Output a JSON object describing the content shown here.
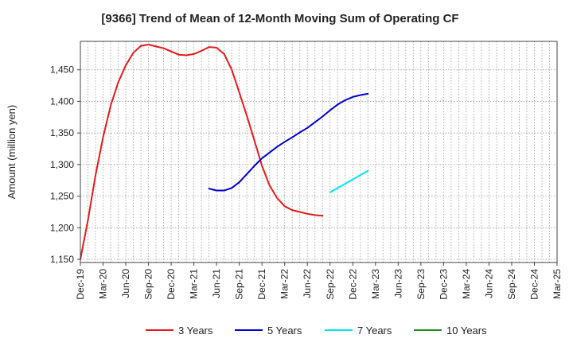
{
  "chart_data": {
    "type": "line",
    "title": "[9366]  Trend of Mean of 12-Month Moving Sum of Operating CF",
    "xlabel": "",
    "ylabel": "Amount (million yen)",
    "ylim": [
      1145,
      1495
    ],
    "yticks": [
      1150,
      1200,
      1250,
      1300,
      1350,
      1400,
      1450
    ],
    "ytick_labels": [
      "1,150",
      "1,200",
      "1,250",
      "1,300",
      "1,350",
      "1,400",
      "1,450"
    ],
    "grid": true,
    "x_categories": [
      "Dec-19",
      "Mar-20",
      "Jun-20",
      "Sep-20",
      "Dec-20",
      "Mar-21",
      "Jun-21",
      "Sep-21",
      "Dec-21",
      "Mar-22",
      "Jun-22",
      "Sep-22",
      "Dec-22",
      "Mar-23",
      "Jun-23",
      "Sep-23",
      "Dec-23",
      "Mar-24",
      "Jun-24",
      "Sep-24",
      "Dec-24",
      "Mar-25"
    ],
    "legend_position": "bottom",
    "series": [
      {
        "name": "3 Years",
        "color": "#e41a1c",
        "points": [
          [
            0,
            1150
          ],
          [
            1,
            1212
          ],
          [
            2,
            1283
          ],
          [
            3,
            1343
          ],
          [
            4,
            1393
          ],
          [
            5,
            1430
          ],
          [
            6,
            1457
          ],
          [
            7,
            1477
          ],
          [
            8,
            1488
          ],
          [
            9,
            1490
          ],
          [
            10,
            1487
          ],
          [
            11,
            1484
          ],
          [
            12,
            1479
          ],
          [
            13,
            1474
          ],
          [
            14,
            1473
          ],
          [
            15,
            1475
          ],
          [
            16,
            1480
          ],
          [
            17,
            1486
          ],
          [
            18,
            1485
          ],
          [
            19,
            1475
          ],
          [
            20,
            1450
          ],
          [
            21,
            1414
          ],
          [
            22,
            1377
          ],
          [
            23,
            1338
          ],
          [
            24,
            1298
          ],
          [
            25,
            1267
          ],
          [
            26,
            1247
          ],
          [
            27,
            1234
          ],
          [
            28,
            1228
          ],
          [
            29,
            1225
          ],
          [
            30,
            1222
          ],
          [
            31,
            1220
          ],
          [
            32,
            1219
          ]
        ]
      },
      {
        "name": "5 Years",
        "color": "#0000cc",
        "points": [
          [
            17,
            1262
          ],
          [
            18,
            1259
          ],
          [
            19,
            1259
          ],
          [
            20,
            1263
          ],
          [
            21,
            1272
          ],
          [
            22,
            1285
          ],
          [
            23,
            1298
          ],
          [
            24,
            1310
          ],
          [
            25,
            1319
          ],
          [
            26,
            1328
          ],
          [
            27,
            1336
          ],
          [
            28,
            1343
          ],
          [
            29,
            1351
          ],
          [
            30,
            1358
          ],
          [
            31,
            1367
          ],
          [
            32,
            1376
          ],
          [
            33,
            1386
          ],
          [
            34,
            1395
          ],
          [
            35,
            1402
          ],
          [
            36,
            1407
          ],
          [
            37,
            1410
          ],
          [
            38,
            1412
          ]
        ]
      },
      {
        "name": "7 Years",
        "color": "#00e5ee",
        "points": [
          [
            33,
            1256
          ],
          [
            38,
            1290
          ]
        ]
      },
      {
        "name": "10 Years",
        "color": "#228b22",
        "points": []
      }
    ]
  }
}
